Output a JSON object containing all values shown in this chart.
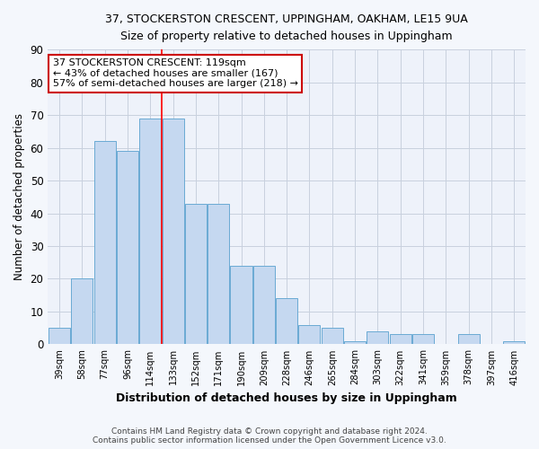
{
  "title_line1": "37, STOCKERSTON CRESCENT, UPPINGHAM, OAKHAM, LE15 9UA",
  "title_line2": "Size of property relative to detached houses in Uppingham",
  "xlabel": "Distribution of detached houses by size in Uppingham",
  "ylabel": "Number of detached properties",
  "categories": [
    "39sqm",
    "58sqm",
    "77sqm",
    "96sqm",
    "114sqm",
    "133sqm",
    "152sqm",
    "171sqm",
    "190sqm",
    "209sqm",
    "228sqm",
    "246sqm",
    "265sqm",
    "284sqm",
    "303sqm",
    "322sqm",
    "341sqm",
    "359sqm",
    "378sqm",
    "397sqm",
    "416sqm"
  ],
  "values": [
    5,
    20,
    62,
    59,
    69,
    69,
    43,
    43,
    24,
    24,
    14,
    6,
    5,
    1,
    4,
    3,
    3,
    0,
    3,
    0,
    1
  ],
  "bar_color": "#c5d8f0",
  "bar_edge_color": "#6aaad4",
  "grid_color": "#c8d0de",
  "background_color": "#eef2fa",
  "fig_background_color": "#f4f7fc",
  "red_line_x": 4.5,
  "annotation_text": "37 STOCKERSTON CRESCENT: 119sqm\n← 43% of detached houses are smaller (167)\n57% of semi-detached houses are larger (218) →",
  "annotation_box_facecolor": "#ffffff",
  "annotation_box_edgecolor": "#cc0000",
  "footer_text": "Contains HM Land Registry data © Crown copyright and database right 2024.\nContains public sector information licensed under the Open Government Licence v3.0.",
  "ylim": [
    0,
    90
  ],
  "yticks": [
    0,
    10,
    20,
    30,
    40,
    50,
    60,
    70,
    80,
    90
  ]
}
